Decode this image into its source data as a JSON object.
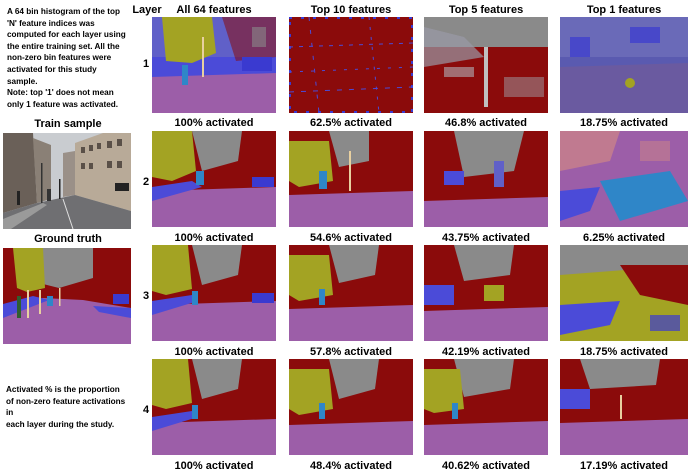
{
  "left_panel": {
    "description_lines": [
      "A 64 bin histogram of the top",
      "'N' feature indices was",
      "computed  for each layer using",
      "the entire training set. All the",
      "non-zero bin features  were",
      "activated for this study",
      "sample.",
      "Note: top '1' does not mean",
      "only 1 feature was activated."
    ],
    "train_sample_label": "Train sample",
    "ground_truth_label": "Ground truth",
    "activation_note_lines": [
      "Activated % is the proportion",
      "of non-zero feature activations in",
      "each layer during the study."
    ]
  },
  "grid": {
    "layer_header": "Layer",
    "columns": [
      "All 64 features",
      "Top 10 features",
      "Top 5 features",
      "Top 1 features"
    ],
    "rows": [
      {
        "layer": "1",
        "activations": [
          "100% activated",
          "62.5% activated",
          "46.8% activated",
          "18.75% activated"
        ]
      },
      {
        "layer": "2",
        "activations": [
          "100% activated",
          "54.6% activated",
          "43.75% activated",
          "6.25% activated"
        ]
      },
      {
        "layer": "3",
        "activations": [
          "100% activated",
          "57.8% activated",
          "42.19% activated",
          "18.75% activated"
        ]
      },
      {
        "layer": "4",
        "activations": [
          "100% activated",
          "48.4% activated",
          "40.62% activated",
          "17.19% activated"
        ]
      }
    ]
  },
  "colors": {
    "road": "#9c5ea8",
    "building": "#8b0b0b",
    "sky": "#8a8a8a",
    "tree": "#a3a323",
    "car": "#3a3ad0",
    "pole": "#e8d0a0",
    "pedestrian": "#2f86c8",
    "sidewalk": "#4b4bd8",
    "fence": "#c07a90"
  }
}
